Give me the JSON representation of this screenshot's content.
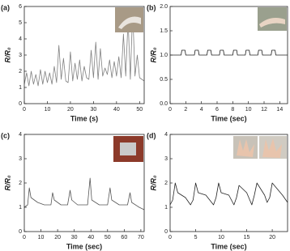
{
  "chart_data": [
    {
      "type": "line",
      "label": "(a)",
      "xlabel": "Time (s)",
      "ylabel": "R/R₀",
      "color": "#808080",
      "x": [
        0,
        1,
        2,
        3,
        4,
        5,
        6,
        7,
        8,
        9,
        10,
        11,
        12,
        13,
        14,
        15,
        16,
        17,
        18,
        19,
        20,
        21,
        22,
        23,
        24,
        25,
        26,
        27,
        28,
        29,
        30,
        31,
        32,
        33,
        34,
        35,
        36,
        37,
        38,
        39,
        40,
        41,
        42,
        43,
        44,
        45,
        46,
        47,
        48,
        49,
        50,
        51,
        52
      ],
      "values": [
        1.2,
        1.9,
        1.1,
        2.0,
        1.2,
        1.8,
        1.1,
        2.1,
        1.2,
        2.0,
        1.3,
        1.9,
        1.2,
        2.3,
        1.3,
        3.6,
        1.5,
        2.8,
        1.4,
        1.3,
        3.2,
        1.4,
        2.5,
        1.5,
        2.7,
        1.4,
        2.3,
        1.6,
        1.5,
        3.3,
        1.6,
        3.8,
        1.5,
        3.4,
        1.7,
        2.2,
        1.8,
        2.7,
        1.6,
        2.6,
        1.7,
        2.9,
        1.6,
        4.3,
        1.7,
        5.2,
        1.5,
        5.8,
        1.7,
        3.0,
        1.6,
        1.5,
        1.4
      ],
      "xlim": [
        0,
        52
      ],
      "ylim": [
        0,
        6
      ],
      "xticks": [
        0,
        10,
        20,
        30,
        40,
        50
      ],
      "yticks": [
        0,
        1,
        2,
        3,
        4,
        5,
        6
      ]
    },
    {
      "type": "line",
      "label": "(b)",
      "xlabel": "Time (sec)",
      "ylabel": "R/R₀",
      "color": "#222222",
      "x": [
        0,
        1.4,
        1.5,
        1.9,
        2.0,
        3.1,
        3.2,
        3.6,
        3.7,
        4.7,
        4.8,
        5.2,
        5.3,
        6.3,
        6.4,
        6.8,
        6.9,
        8.0,
        8.1,
        8.5,
        8.6,
        9.6,
        9.7,
        10.1,
        10.2,
        11.2,
        11.3,
        11.7,
        11.8,
        12.9,
        13.0,
        13.4,
        13.5,
        15
      ],
      "values": [
        1,
        1,
        1.1,
        1.1,
        1,
        1,
        1.1,
        1.1,
        1,
        1,
        1.1,
        1.1,
        1,
        1,
        1.1,
        1.1,
        1,
        1,
        1.1,
        1.1,
        1,
        1,
        1.1,
        1.1,
        1,
        1,
        1.1,
        1.1,
        1,
        1,
        1.1,
        1.1,
        1,
        1
      ],
      "xlim": [
        0,
        15
      ],
      "ylim": [
        0,
        2
      ],
      "xticks": [
        0,
        2,
        4,
        6,
        8,
        10,
        12,
        14
      ],
      "yticks": [
        {
          "value": 0,
          "label": "0.0"
        },
        {
          "value": 0.5,
          "label": "0.5"
        },
        {
          "value": 1,
          "label": "1.0"
        },
        {
          "value": 1.5,
          "label": "1.5"
        },
        {
          "value": 2,
          "label": "2.0"
        }
      ]
    },
    {
      "type": "line",
      "label": "(c)",
      "xlabel": "Time (sec)",
      "ylabel": "R/R₀",
      "color": "#555555",
      "x": [
        0,
        2,
        3,
        4,
        8,
        12,
        16,
        17,
        18,
        22,
        26,
        27.5,
        28.5,
        32,
        38,
        39.5,
        40.5,
        45,
        50,
        51.5,
        52.5,
        57,
        62,
        63.5,
        64.5,
        69,
        72
      ],
      "values": [
        1.0,
        1.1,
        1.8,
        1.4,
        1.2,
        1.1,
        1.1,
        1.6,
        1.3,
        1.1,
        1.1,
        1.7,
        1.3,
        1.1,
        1.1,
        2.2,
        1.3,
        1.1,
        1.1,
        1.8,
        1.3,
        1.1,
        1.1,
        1.6,
        1.2,
        1.0,
        0.9
      ],
      "xlim": [
        0,
        72
      ],
      "ylim": [
        0,
        4
      ],
      "xticks": [
        0,
        10,
        20,
        30,
        40,
        50,
        60,
        70
      ],
      "yticks": [
        0,
        1,
        2,
        3,
        4
      ]
    },
    {
      "type": "line",
      "label": "(d)",
      "xlabel": "Time (sec)",
      "ylabel": "R/R₀",
      "color": "#222222",
      "x": [
        0,
        0.5,
        1,
        1.5,
        3,
        4,
        4.5,
        5,
        5.5,
        7,
        8.5,
        9,
        9.5,
        10,
        11.5,
        12.5,
        13,
        13.5,
        15,
        16,
        16.5,
        17,
        18.5,
        19,
        19.5,
        20,
        22,
        23
      ],
      "values": [
        1.1,
        1.3,
        2.0,
        1.6,
        1.4,
        1.1,
        1.3,
        2.0,
        1.6,
        1.5,
        1.1,
        1.4,
        2.0,
        1.6,
        1.5,
        1.1,
        1.4,
        1.9,
        1.6,
        1.1,
        1.5,
        2.0,
        1.5,
        1.2,
        1.4,
        2.0,
        1.5,
        1.2
      ],
      "xlim": [
        0,
        23
      ],
      "ylim": [
        0,
        4
      ],
      "xticks": [
        0,
        5,
        10,
        15,
        20
      ],
      "yticks": [
        0,
        1,
        2,
        3,
        4
      ]
    }
  ]
}
